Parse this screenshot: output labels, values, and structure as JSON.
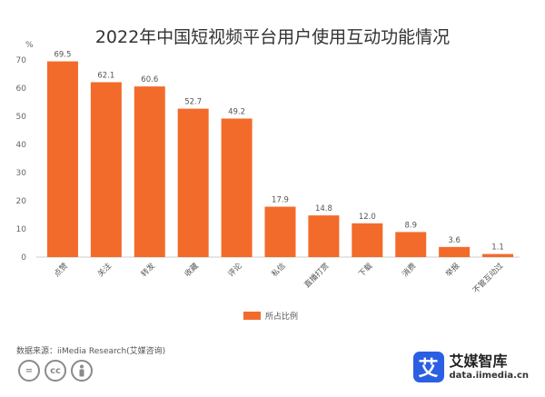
{
  "chart_data": {
    "type": "bar",
    "title": "2022年中国短视频平台用户使用互动功能情况",
    "unit": "%",
    "categories": [
      "点赞",
      "关注",
      "转发",
      "收藏",
      "评论",
      "私信",
      "直播打赏",
      "下载",
      "消费",
      "举报",
      "不管互动过"
    ],
    "series": [
      {
        "name": "所占比例",
        "values": [
          69.5,
          62.1,
          60.6,
          52.7,
          49.2,
          17.9,
          14.8,
          12.0,
          8.9,
          3.6,
          1.1
        ]
      }
    ],
    "value_labels": [
      "69.5",
      "62.1",
      "60.6",
      "52.7",
      "49.2",
      "17.9",
      "14.8",
      "12.0",
      "8.9",
      "3.6",
      "1.1"
    ],
    "yticks": [
      0,
      10,
      20,
      30,
      40,
      50,
      60,
      70
    ],
    "ylim": [
      0,
      70
    ],
    "legend_position": "bottom-center",
    "bar_color": "#f26b2b",
    "grid": false
  },
  "footer": {
    "source": "数据来源：iiMedia Research(艾媒咨询)",
    "cc_icons": [
      "equals-icon",
      "cc-icon",
      "person-icon"
    ],
    "brand_logo": "艾",
    "brand_name": "艾媒智库",
    "brand_url": "data.iimedia.cn",
    "brand_color": "#2b5fe3"
  }
}
